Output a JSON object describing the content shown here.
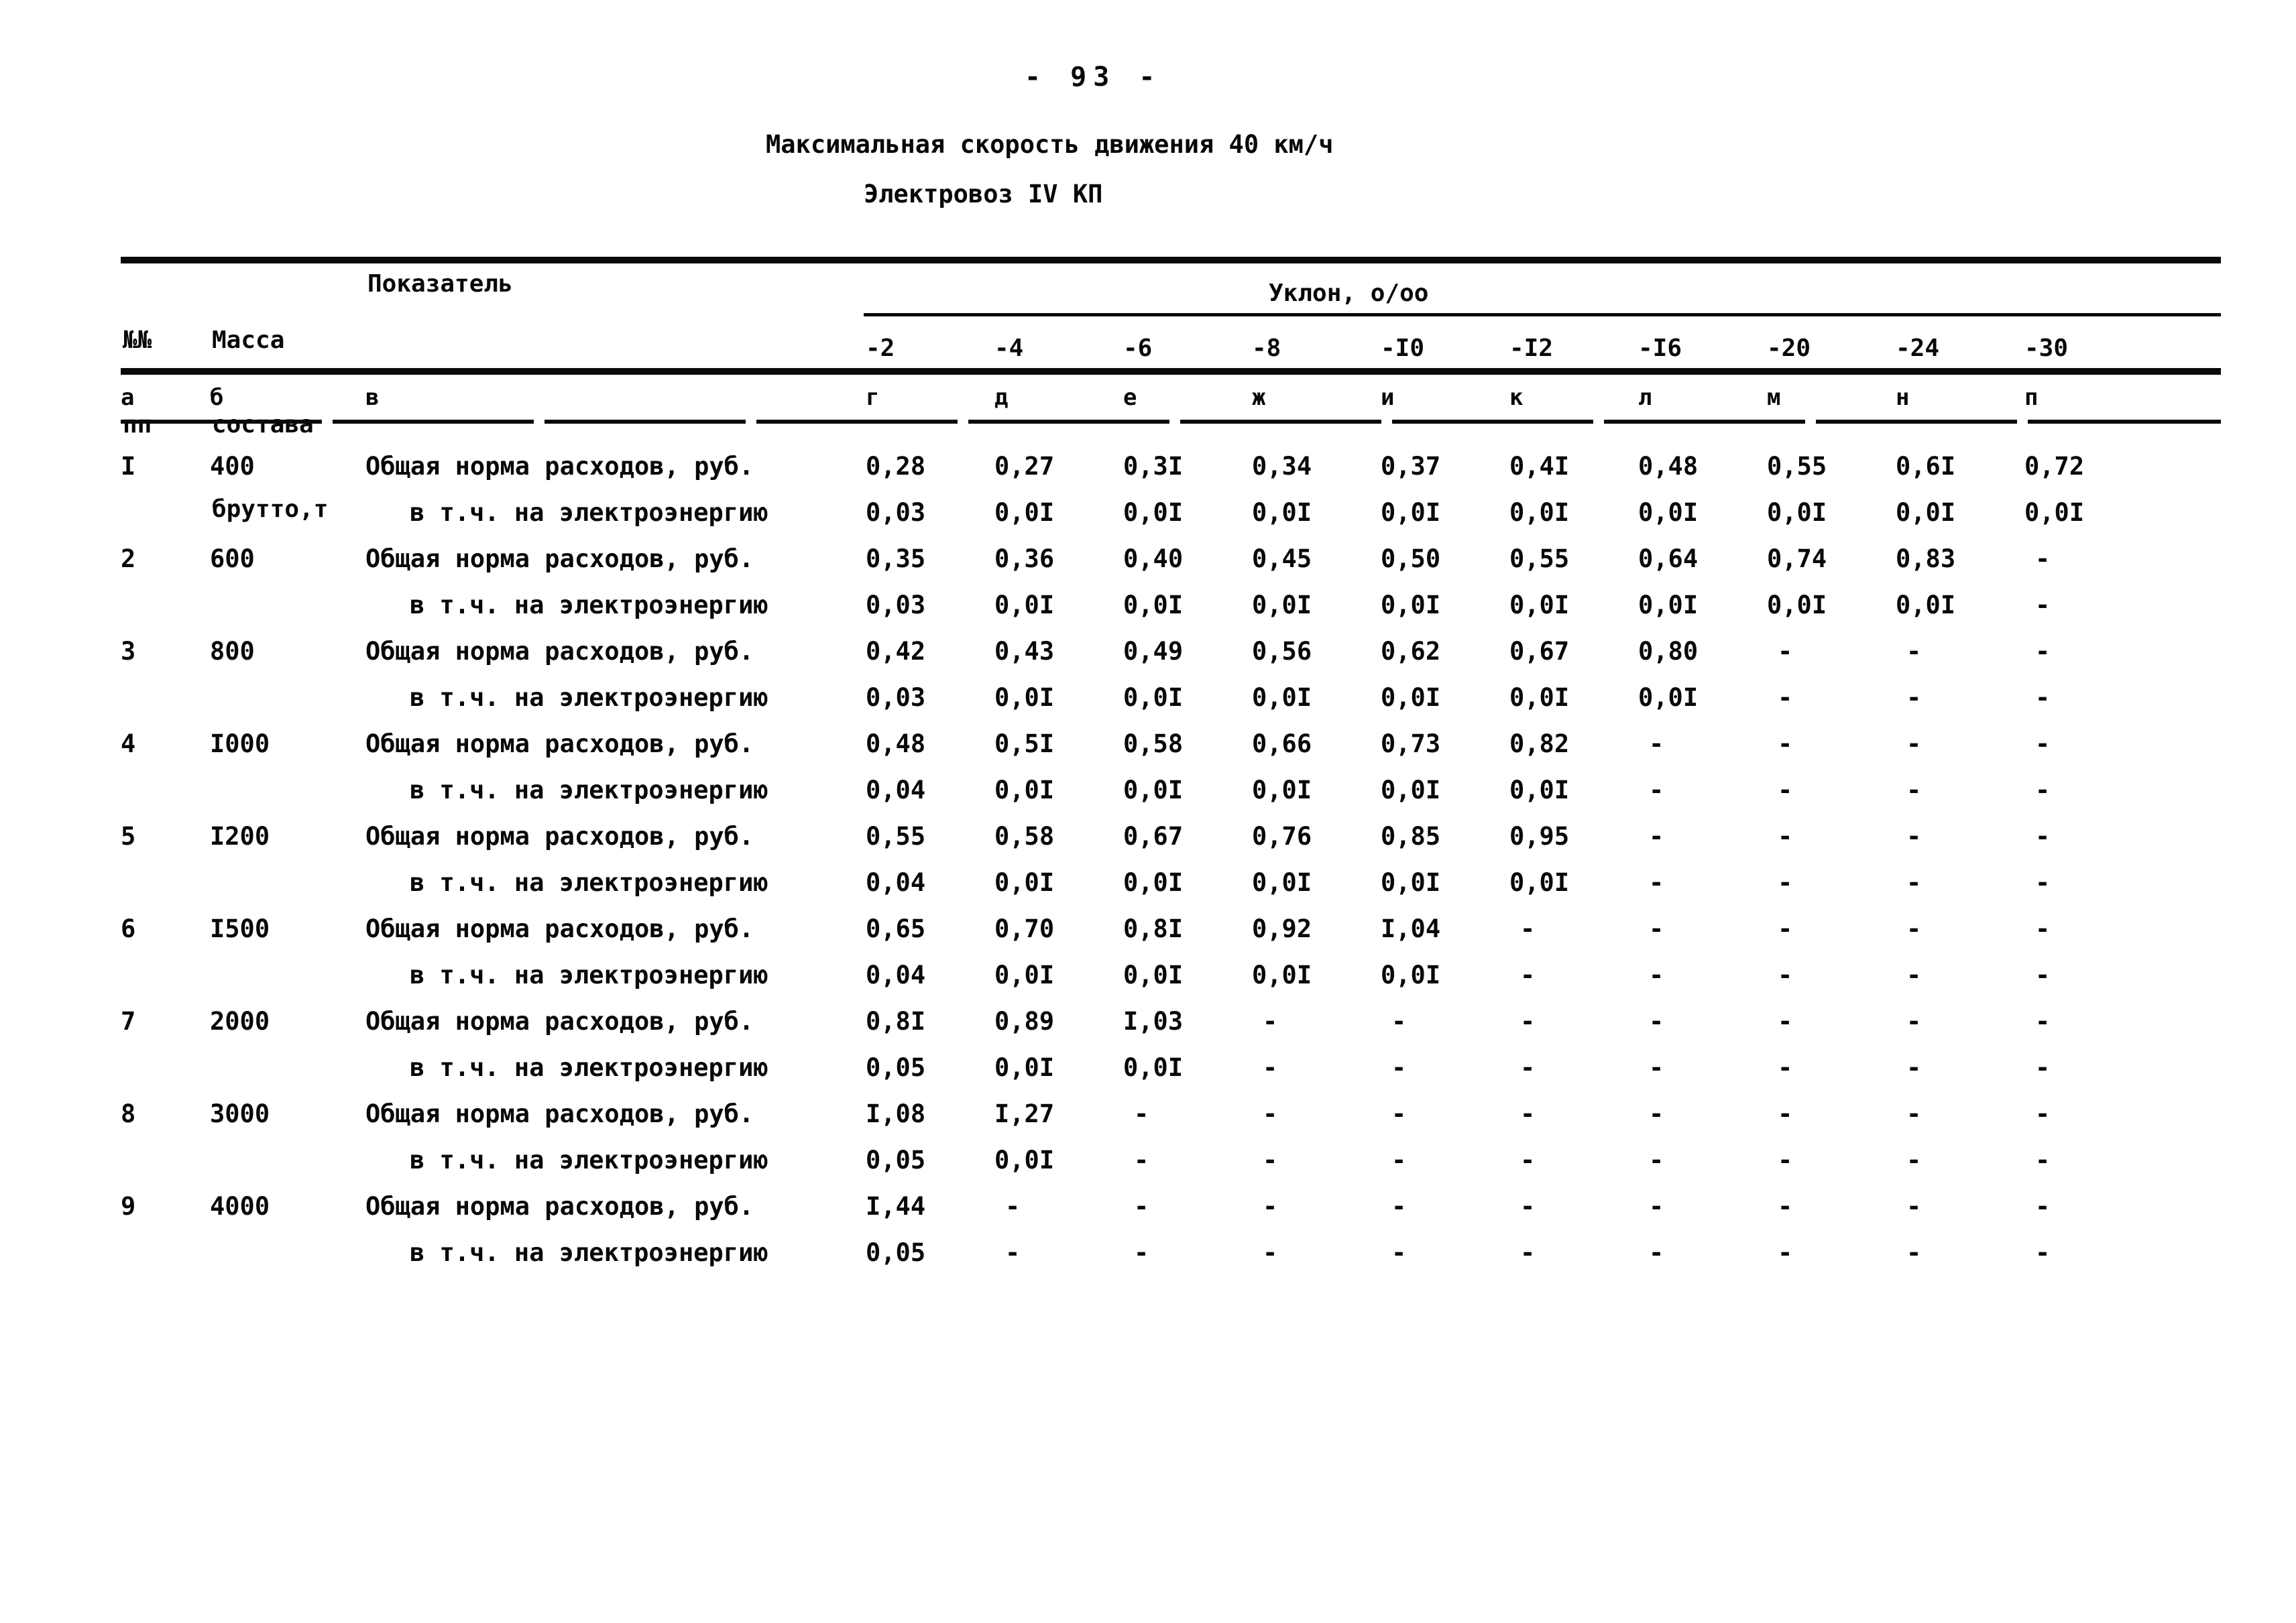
{
  "page": {
    "number": "- 93 -",
    "title": "Максимальная скорость движения 40 км/ч",
    "subtitle": "Электровоз IV КП"
  },
  "table": {
    "header": {
      "num_lines": [
        "№№",
        "пп"
      ],
      "mass_lines": [
        "Масса",
        "состава",
        "брутто,т"
      ],
      "indicator_label": "Показатель",
      "slope_group_label": "Уклон, о/оо",
      "slopes": [
        "-2",
        "-4",
        "-6",
        "-8",
        "-I0",
        "-I2",
        "-I6",
        "-20",
        "-24",
        "-30"
      ],
      "letters": [
        "а",
        "б",
        "в",
        "г",
        "д",
        "е",
        "ж",
        "и",
        "к",
        "л",
        "м",
        "н",
        "п"
      ]
    },
    "rows": [
      {
        "num": "I",
        "mass": "400",
        "sub": false,
        "indicator": "Общая норма расходов, руб.",
        "values": [
          "0,28",
          "0,27",
          "0,3I",
          "0,34",
          "0,37",
          "0,4I",
          "0,48",
          "0,55",
          "0,6I",
          "0,72"
        ]
      },
      {
        "num": "",
        "mass": "",
        "sub": true,
        "indicator": "в т.ч. на электроэнергию",
        "values": [
          "0,03",
          "0,0I",
          "0,0I",
          "0,0I",
          "0,0I",
          "0,0I",
          "0,0I",
          "0,0I",
          "0,0I",
          "0,0I"
        ]
      },
      {
        "num": "2",
        "mass": "600",
        "sub": false,
        "indicator": "Общая норма расходов, руб.",
        "values": [
          "0,35",
          "0,36",
          "0,40",
          "0,45",
          "0,50",
          "0,55",
          "0,64",
          "0,74",
          "0,83",
          "-"
        ]
      },
      {
        "num": "",
        "mass": "",
        "sub": true,
        "indicator": "в т.ч. на электроэнергию",
        "values": [
          "0,03",
          "0,0I",
          "0,0I",
          "0,0I",
          "0,0I",
          "0,0I",
          "0,0I",
          "0,0I",
          "0,0I",
          "-"
        ]
      },
      {
        "num": "3",
        "mass": "800",
        "sub": false,
        "indicator": "Общая норма расходов, руб.",
        "values": [
          "0,42",
          "0,43",
          "0,49",
          "0,56",
          "0,62",
          "0,67",
          "0,80",
          "-",
          "-",
          "-"
        ]
      },
      {
        "num": "",
        "mass": "",
        "sub": true,
        "indicator": "в т.ч. на электроэнергию",
        "values": [
          "0,03",
          "0,0I",
          "0,0I",
          "0,0I",
          "0,0I",
          "0,0I",
          "0,0I",
          "-",
          "-",
          "-"
        ]
      },
      {
        "num": "4",
        "mass": "I000",
        "sub": false,
        "indicator": "Общая норма расходов, руб.",
        "values": [
          "0,48",
          "0,5I",
          "0,58",
          "0,66",
          "0,73",
          "0,82",
          "-",
          "-",
          "-",
          "-"
        ]
      },
      {
        "num": "",
        "mass": "",
        "sub": true,
        "indicator": "в т.ч. на электроэнергию",
        "values": [
          "0,04",
          "0,0I",
          "0,0I",
          "0,0I",
          "0,0I",
          "0,0I",
          "-",
          "-",
          "-",
          "-"
        ]
      },
      {
        "num": "5",
        "mass": "I200",
        "sub": false,
        "indicator": "Общая норма расходов, руб.",
        "values": [
          "0,55",
          "0,58",
          "0,67",
          "0,76",
          "0,85",
          "0,95",
          "-",
          "-",
          "-",
          "-"
        ]
      },
      {
        "num": "",
        "mass": "",
        "sub": true,
        "indicator": "в т.ч. на электроэнергию",
        "values": [
          "0,04",
          "0,0I",
          "0,0I",
          "0,0I",
          "0,0I",
          "0,0I",
          "-",
          "-",
          "-",
          "-"
        ]
      },
      {
        "num": "6",
        "mass": "I500",
        "sub": false,
        "indicator": "Общая норма расходов, руб.",
        "values": [
          "0,65",
          "0,70",
          "0,8I",
          "0,92",
          "I,04",
          "-",
          "-",
          "-",
          "-",
          "-"
        ]
      },
      {
        "num": "",
        "mass": "",
        "sub": true,
        "indicator": "в т.ч. на электроэнергию",
        "values": [
          "0,04",
          "0,0I",
          "0,0I",
          "0,0I",
          "0,0I",
          "-",
          "-",
          "-",
          "-",
          "-"
        ]
      },
      {
        "num": "7",
        "mass": "2000",
        "sub": false,
        "indicator": "Общая норма расходов, руб.",
        "values": [
          "0,8I",
          "0,89",
          "I,03",
          "-",
          "-",
          "-",
          "-",
          "-",
          "-",
          "-"
        ]
      },
      {
        "num": "",
        "mass": "",
        "sub": true,
        "indicator": "в т.ч. на электроэнергию",
        "values": [
          "0,05",
          "0,0I",
          "0,0I",
          "-",
          "-",
          "-",
          "-",
          "-",
          "-",
          "-"
        ]
      },
      {
        "num": "8",
        "mass": "3000",
        "sub": false,
        "indicator": "Общая норма расходов, руб.",
        "values": [
          "I,08",
          "I,27",
          "-",
          "-",
          "-",
          "-",
          "-",
          "-",
          "-",
          "-"
        ]
      },
      {
        "num": "",
        "mass": "",
        "sub": true,
        "indicator": "в т.ч. на электроэнергию",
        "values": [
          "0,05",
          "0,0I",
          "-",
          "-",
          "-",
          "-",
          "-",
          "-",
          "-",
          "-"
        ]
      },
      {
        "num": "9",
        "mass": "4000",
        "sub": false,
        "indicator": "Общая норма расходов, руб.",
        "values": [
          "I,44",
          "-",
          "-",
          "-",
          "-",
          "-",
          "-",
          "-",
          "-",
          "-"
        ]
      },
      {
        "num": "",
        "mass": "",
        "sub": true,
        "indicator": "в т.ч. на электроэнергию",
        "values": [
          "0,05",
          "-",
          "-",
          "-",
          "-",
          "-",
          "-",
          "-",
          "-",
          "-"
        ]
      }
    ]
  }
}
